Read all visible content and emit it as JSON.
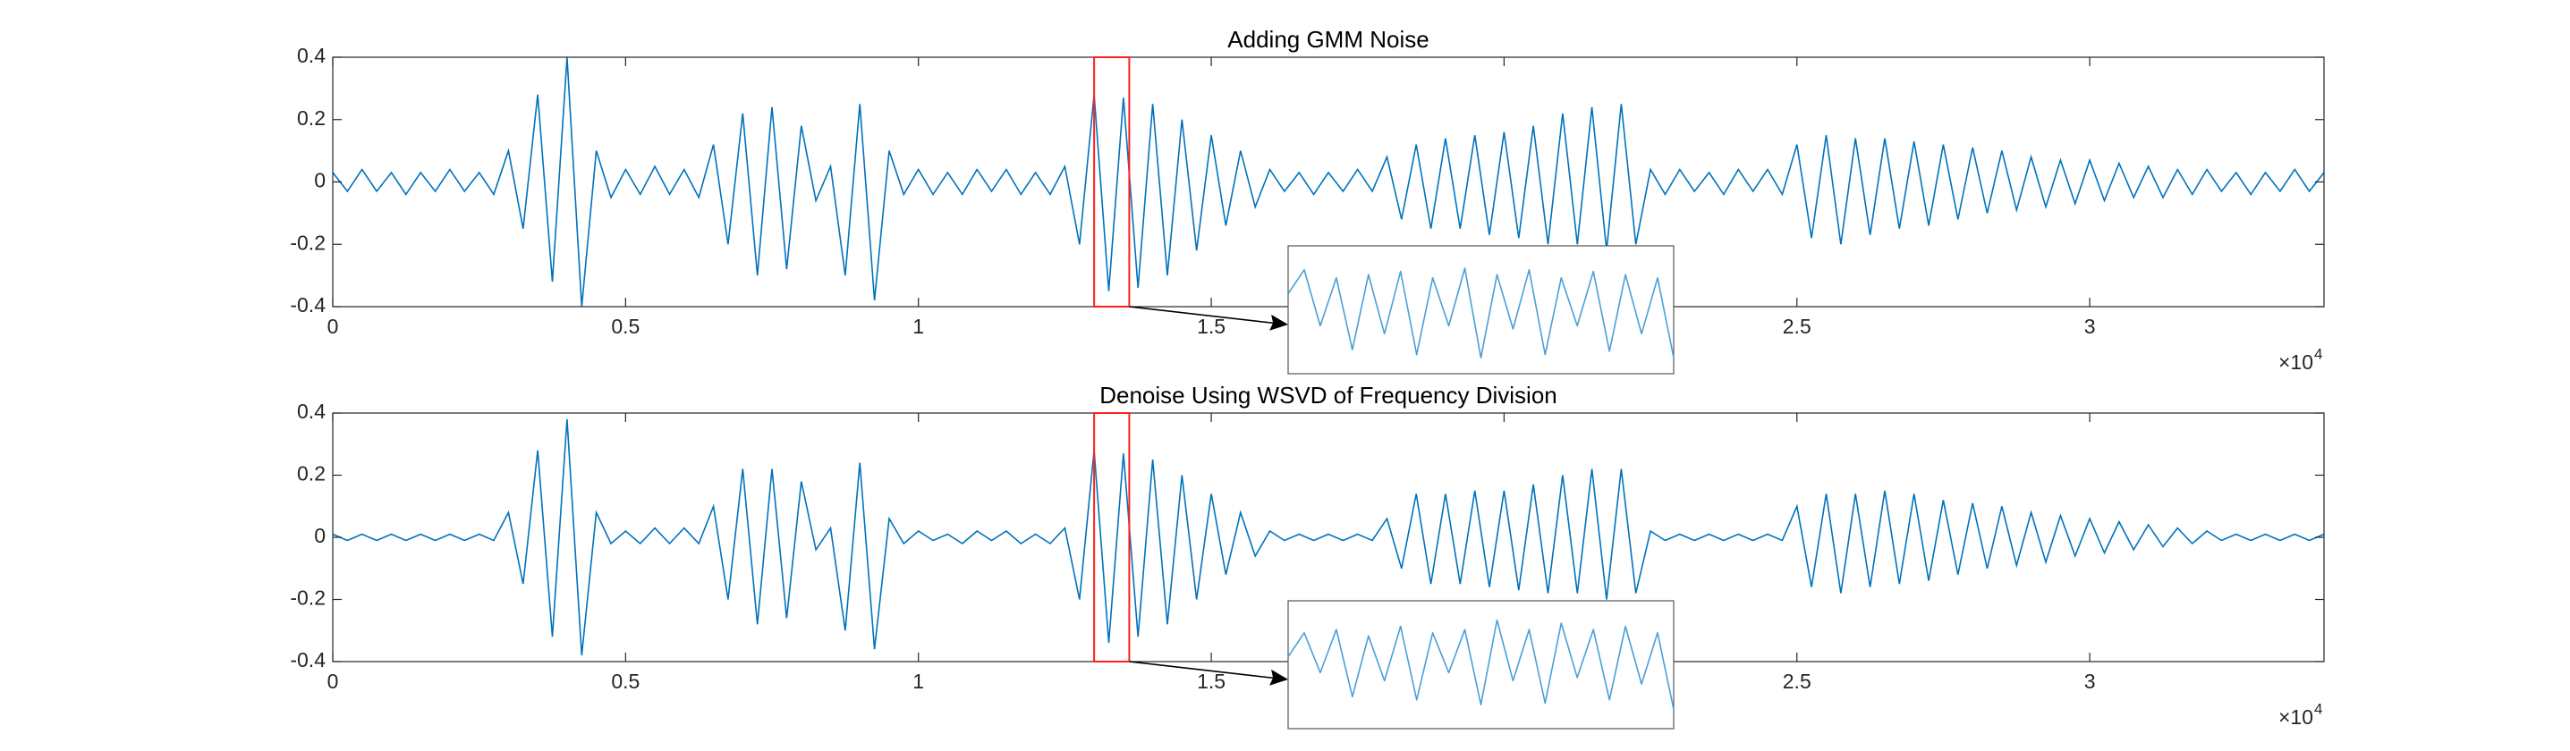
{
  "chart_data": [
    {
      "type": "line",
      "title": "Adding GMM Noise",
      "color": "#0072bd",
      "xlim": [
        0,
        3.4
      ],
      "ylim": [
        -0.4,
        0.4
      ],
      "xticks": [
        0,
        0.5,
        1,
        1.5,
        2,
        2.5,
        3
      ],
      "yticks": [
        0.4,
        0.2,
        0,
        -0.2,
        -0.4
      ],
      "x_multiplier": "×10",
      "x_multiplier_power": "4",
      "x": [
        0,
        0.025,
        0.05,
        0.075,
        0.1,
        0.125,
        0.15,
        0.175,
        0.2,
        0.225,
        0.25,
        0.275,
        0.3,
        0.325,
        0.35,
        0.375,
        0.4,
        0.425,
        0.45,
        0.475,
        0.5,
        0.525,
        0.55,
        0.575,
        0.6,
        0.625,
        0.65,
        0.675,
        0.7,
        0.725,
        0.75,
        0.775,
        0.8,
        0.825,
        0.85,
        0.875,
        0.9,
        0.925,
        0.95,
        0.975,
        1,
        1.025,
        1.05,
        1.075,
        1.1,
        1.125,
        1.15,
        1.175,
        1.2,
        1.225,
        1.25,
        1.275,
        1.3,
        1.325,
        1.35,
        1.375,
        1.4,
        1.425,
        1.45,
        1.475,
        1.5,
        1.525,
        1.55,
        1.575,
        1.6,
        1.625,
        1.65,
        1.675,
        1.7,
        1.725,
        1.75,
        1.775,
        1.8,
        1.825,
        1.85,
        1.875,
        1.9,
        1.925,
        1.95,
        1.975,
        2,
        2.025,
        2.05,
        2.075,
        2.1,
        2.125,
        2.15,
        2.175,
        2.2,
        2.225,
        2.25,
        2.275,
        2.3,
        2.325,
        2.35,
        2.375,
        2.4,
        2.425,
        2.45,
        2.475,
        2.5,
        2.525,
        2.55,
        2.575,
        2.6,
        2.625,
        2.65,
        2.675,
        2.7,
        2.725,
        2.75,
        2.775,
        2.8,
        2.825,
        2.85,
        2.875,
        2.9,
        2.925,
        2.95,
        2.975,
        3,
        3.025,
        3.05,
        3.075,
        3.1,
        3.125,
        3.15,
        3.175,
        3.2,
        3.225,
        3.25,
        3.275,
        3.3,
        3.325,
        3.35,
        3.375,
        3.4
      ],
      "values": [
        0.03,
        -0.03,
        0.04,
        -0.03,
        0.03,
        -0.04,
        0.03,
        -0.03,
        0.04,
        -0.03,
        0.03,
        -0.04,
        0.1,
        -0.15,
        0.28,
        -0.32,
        0.4,
        -0.4,
        0.1,
        -0.05,
        0.04,
        -0.04,
        0.05,
        -0.04,
        0.04,
        -0.05,
        0.12,
        -0.2,
        0.22,
        -0.3,
        0.24,
        -0.28,
        0.18,
        -0.06,
        0.05,
        -0.3,
        0.25,
        -0.38,
        0.1,
        -0.04,
        0.04,
        -0.04,
        0.03,
        -0.04,
        0.04,
        -0.03,
        0.04,
        -0.04,
        0.03,
        -0.04,
        0.05,
        -0.2,
        0.28,
        -0.35,
        0.27,
        -0.34,
        0.25,
        -0.3,
        0.2,
        -0.22,
        0.15,
        -0.14,
        0.1,
        -0.08,
        0.04,
        -0.03,
        0.03,
        -0.04,
        0.03,
        -0.03,
        0.04,
        -0.03,
        0.08,
        -0.12,
        0.12,
        -0.15,
        0.14,
        -0.15,
        0.15,
        -0.17,
        0.16,
        -0.18,
        0.18,
        -0.2,
        0.22,
        -0.2,
        0.24,
        -0.22,
        0.25,
        -0.2,
        0.04,
        -0.04,
        0.04,
        -0.03,
        0.03,
        -0.04,
        0.04,
        -0.03,
        0.04,
        -0.04,
        0.12,
        -0.18,
        0.15,
        -0.2,
        0.14,
        -0.17,
        0.14,
        -0.15,
        0.13,
        -0.14,
        0.12,
        -0.12,
        0.11,
        -0.1,
        0.1,
        -0.09,
        0.08,
        -0.08,
        0.07,
        -0.07,
        0.07,
        -0.06,
        0.06,
        -0.05,
        0.05,
        -0.05,
        0.04,
        -0.04,
        0.04,
        -0.03,
        0.03,
        -0.04,
        0.03,
        -0.03,
        0.04,
        -0.03,
        0.03
      ],
      "zoom": {
        "xlim": [
          1.3,
          1.36
        ],
        "ylim": [
          -0.4,
          0.4
        ],
        "color": "#4a9fd8",
        "x": [
          1.3,
          1.3025,
          1.305,
          1.3075,
          1.31,
          1.3125,
          1.315,
          1.3175,
          1.32,
          1.3225,
          1.325,
          1.3275,
          1.33,
          1.3325,
          1.335,
          1.3375,
          1.34,
          1.3425,
          1.345,
          1.3475,
          1.35,
          1.3525,
          1.355,
          1.3575,
          1.36
        ],
        "values": [
          0.1,
          0.25,
          -0.1,
          0.2,
          -0.25,
          0.22,
          -0.15,
          0.24,
          -0.28,
          0.2,
          -0.1,
          0.26,
          -0.3,
          0.22,
          -0.12,
          0.25,
          -0.28,
          0.2,
          -0.1,
          0.24,
          -0.26,
          0.22,
          -0.15,
          0.2,
          -0.3
        ]
      }
    },
    {
      "type": "line",
      "title": "Denoise Using WSVD of Frequency Division",
      "color": "#0072bd",
      "xlim": [
        0,
        3.4
      ],
      "ylim": [
        -0.4,
        0.4
      ],
      "xticks": [
        0,
        0.5,
        1,
        1.5,
        2,
        2.5,
        3
      ],
      "yticks": [
        0.4,
        0.2,
        0,
        -0.2,
        -0.4
      ],
      "x_multiplier": "×10",
      "x_multiplier_power": "4",
      "x": [
        0,
        0.025,
        0.05,
        0.075,
        0.1,
        0.125,
        0.15,
        0.175,
        0.2,
        0.225,
        0.25,
        0.275,
        0.3,
        0.325,
        0.35,
        0.375,
        0.4,
        0.425,
        0.45,
        0.475,
        0.5,
        0.525,
        0.55,
        0.575,
        0.6,
        0.625,
        0.65,
        0.675,
        0.7,
        0.725,
        0.75,
        0.775,
        0.8,
        0.825,
        0.85,
        0.875,
        0.9,
        0.925,
        0.95,
        0.975,
        1,
        1.025,
        1.05,
        1.075,
        1.1,
        1.125,
        1.15,
        1.175,
        1.2,
        1.225,
        1.25,
        1.275,
        1.3,
        1.325,
        1.35,
        1.375,
        1.4,
        1.425,
        1.45,
        1.475,
        1.5,
        1.525,
        1.55,
        1.575,
        1.6,
        1.625,
        1.65,
        1.675,
        1.7,
        1.725,
        1.75,
        1.775,
        1.8,
        1.825,
        1.85,
        1.875,
        1.9,
        1.925,
        1.95,
        1.975,
        2,
        2.025,
        2.05,
        2.075,
        2.1,
        2.125,
        2.15,
        2.175,
        2.2,
        2.225,
        2.25,
        2.275,
        2.3,
        2.325,
        2.35,
        2.375,
        2.4,
        2.425,
        2.45,
        2.475,
        2.5,
        2.525,
        2.55,
        2.575,
        2.6,
        2.625,
        2.65,
        2.675,
        2.7,
        2.725,
        2.75,
        2.775,
        2.8,
        2.825,
        2.85,
        2.875,
        2.9,
        2.925,
        2.95,
        2.975,
        3,
        3.025,
        3.05,
        3.075,
        3.1,
        3.125,
        3.15,
        3.175,
        3.2,
        3.225,
        3.25,
        3.275,
        3.3,
        3.325,
        3.35,
        3.375,
        3.4
      ],
      "values": [
        0.01,
        -0.01,
        0.01,
        -0.01,
        0.01,
        -0.01,
        0.01,
        -0.01,
        0.01,
        -0.01,
        0.01,
        -0.01,
        0.08,
        -0.15,
        0.28,
        -0.32,
        0.38,
        -0.38,
        0.08,
        -0.02,
        0.02,
        -0.02,
        0.03,
        -0.02,
        0.03,
        -0.02,
        0.1,
        -0.2,
        0.22,
        -0.28,
        0.22,
        -0.26,
        0.18,
        -0.04,
        0.03,
        -0.3,
        0.24,
        -0.36,
        0.06,
        -0.02,
        0.02,
        -0.01,
        0.01,
        -0.02,
        0.02,
        -0.01,
        0.02,
        -0.02,
        0.01,
        -0.02,
        0.03,
        -0.2,
        0.28,
        -0.34,
        0.27,
        -0.32,
        0.25,
        -0.28,
        0.2,
        -0.2,
        0.14,
        -0.12,
        0.08,
        -0.06,
        0.02,
        -0.01,
        0.01,
        -0.01,
        0.01,
        -0.01,
        0.01,
        -0.01,
        0.06,
        -0.1,
        0.14,
        -0.15,
        0.14,
        -0.15,
        0.15,
        -0.16,
        0.15,
        -0.17,
        0.17,
        -0.18,
        0.2,
        -0.18,
        0.22,
        -0.2,
        0.22,
        -0.18,
        0.02,
        -0.01,
        0.01,
        -0.01,
        0.01,
        -0.01,
        0.01,
        -0.01,
        0.01,
        -0.01,
        0.1,
        -0.16,
        0.14,
        -0.18,
        0.14,
        -0.16,
        0.15,
        -0.15,
        0.14,
        -0.14,
        0.12,
        -0.12,
        0.11,
        -0.1,
        0.1,
        -0.09,
        0.08,
        -0.08,
        0.07,
        -0.06,
        0.06,
        -0.05,
        0.05,
        -0.04,
        0.04,
        -0.03,
        0.03,
        -0.02,
        0.02,
        -0.01,
        0.01,
        -0.01,
        0.01,
        -0.01,
        0.01,
        -0.01,
        0.01
      ],
      "zoom": {
        "xlim": [
          1.3,
          1.36
        ],
        "ylim": [
          -0.4,
          0.4
        ],
        "color": "#4a9fd8",
        "x": [
          1.3,
          1.3025,
          1.305,
          1.3075,
          1.31,
          1.3125,
          1.315,
          1.3175,
          1.32,
          1.3225,
          1.325,
          1.3275,
          1.33,
          1.3325,
          1.335,
          1.3375,
          1.34,
          1.3425,
          1.345,
          1.3475,
          1.35,
          1.3525,
          1.355,
          1.3575,
          1.36
        ],
        "values": [
          0.05,
          0.2,
          -0.05,
          0.22,
          -0.2,
          0.18,
          -0.1,
          0.24,
          -0.22,
          0.2,
          -0.05,
          0.22,
          -0.25,
          0.28,
          -0.1,
          0.22,
          -0.24,
          0.26,
          -0.08,
          0.22,
          -0.22,
          0.24,
          -0.12,
          0.2,
          -0.28
        ]
      }
    }
  ]
}
